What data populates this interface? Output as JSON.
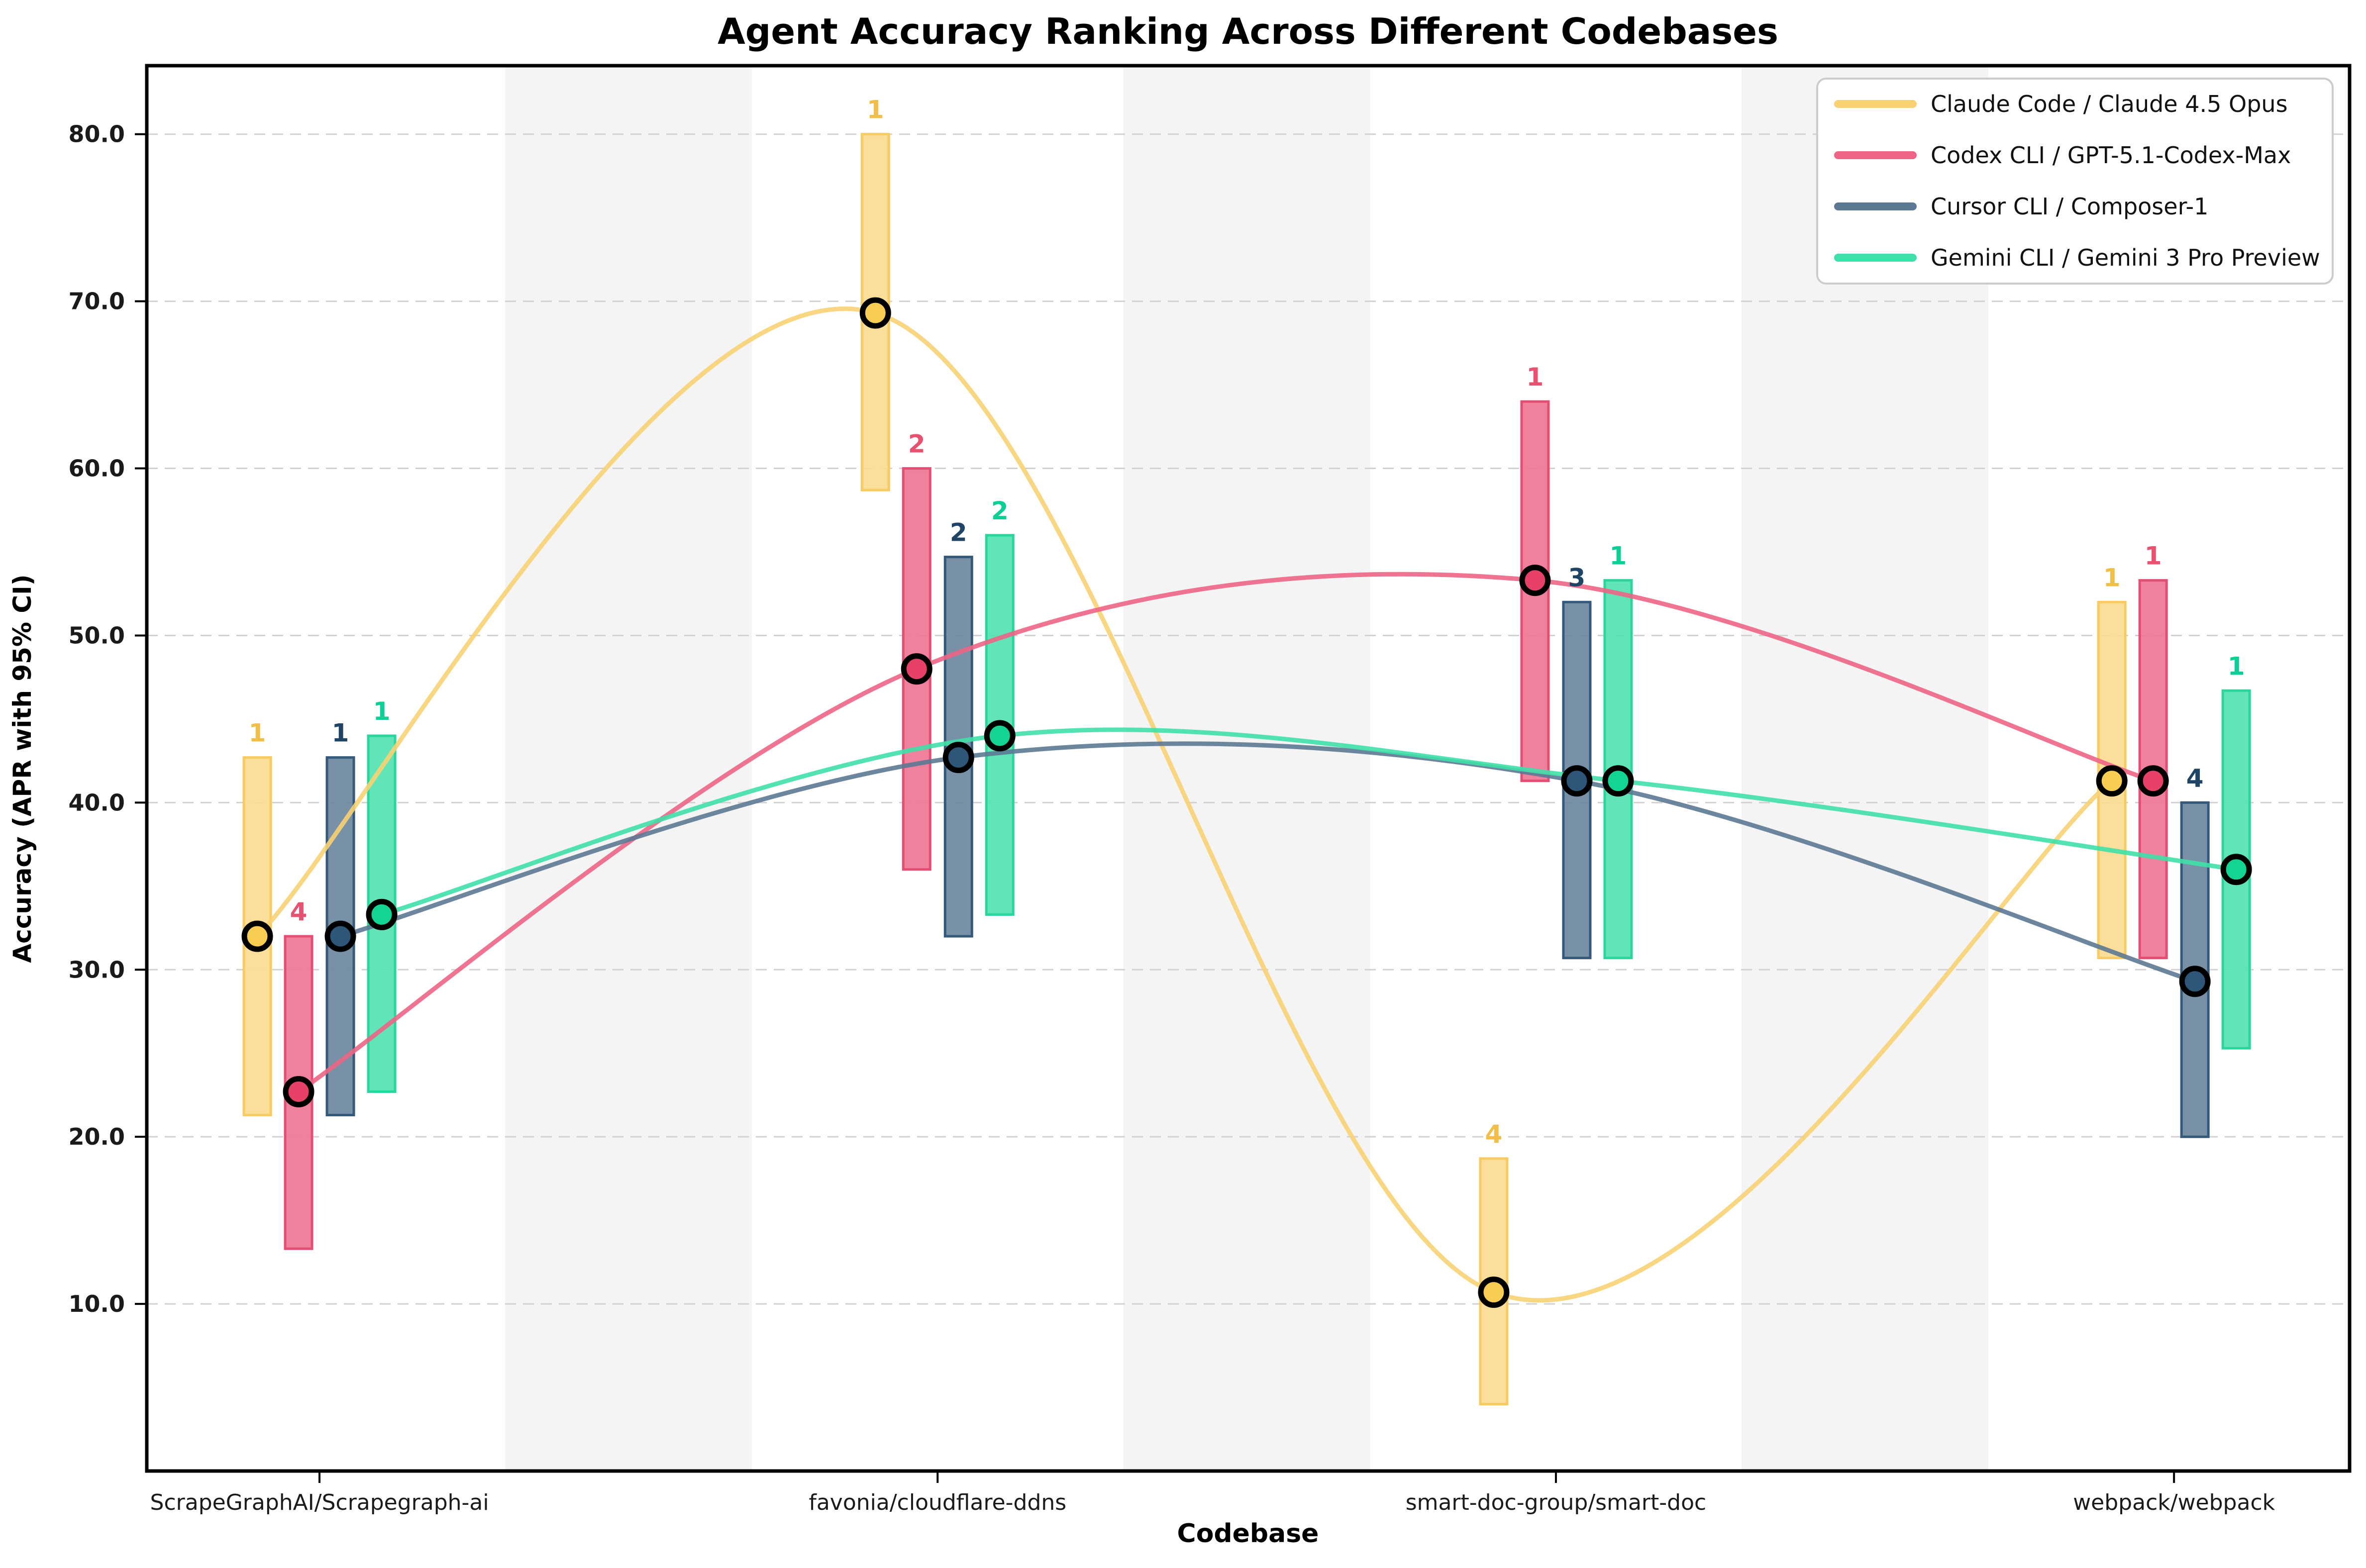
{
  "title": "Agent Accuracy Ranking Across Different Codebases",
  "chart_data": {
    "type": "line",
    "subtype": "bump-chart with 95% CI bars and rank labels",
    "title": "Agent Accuracy Ranking Across Different Codebases",
    "xlabel": "Codebase",
    "ylabel": "Accuracy (APR with 95% CI)",
    "ylim": [
      0,
      84.1
    ],
    "yticks": [
      10,
      20,
      30,
      40,
      50,
      60,
      70,
      80
    ],
    "ytick_labels": [
      "10.0",
      "20.0",
      "30.0",
      "40.0",
      "50.0",
      "60.0",
      "70.0",
      "80.0"
    ],
    "grid": "horizontal dashed",
    "legend_position": "upper right",
    "background": "alternating vertical light-gray bands between categories",
    "categories": [
      "ScrapeGraphAI/Scrapegraph-ai",
      "favonia/cloudflare-ddns",
      "smart-doc-group/smart-doc",
      "webpack/webpack"
    ],
    "series": [
      {
        "name": "Claude Code / Claude 4.5 Opus",
        "line_color": "#F8D173",
        "bar_fill": "#FBDB90",
        "bar_edge": "#F7CA62",
        "marker_fill": "#F9CC52",
        "rank_color": "#EFBF49",
        "means": [
          32.0,
          69.3,
          10.7,
          41.3
        ],
        "ci_low": [
          21.3,
          58.7,
          4.0,
          30.7
        ],
        "ci_high": [
          42.7,
          80.0,
          18.7,
          52.0
        ],
        "ranks": [
          1,
          1,
          4,
          1
        ]
      },
      {
        "name": "Codex CLI / GPT-5.1-Codex-Max",
        "line_color": "#ED6585",
        "bar_fill": "#EF7694",
        "bar_edge": "#E64D73",
        "marker_fill": "#E84168",
        "rank_color": "#E8516F",
        "means": [
          22.7,
          48.0,
          53.3,
          41.3
        ],
        "ci_low": [
          13.3,
          36.0,
          41.3,
          30.7
        ],
        "ci_high": [
          32.0,
          60.0,
          64.0,
          53.3
        ],
        "ranks": [
          4,
          2,
          1,
          1
        ]
      },
      {
        "name": "Cursor CLI / Composer-1",
        "line_color": "#5C7993",
        "bar_fill": "#6D88A0",
        "bar_edge": "#35597B",
        "marker_fill": "#2E5678",
        "rank_color": "#1E4566",
        "means": [
          32.0,
          42.7,
          41.3,
          29.3
        ],
        "ci_low": [
          21.3,
          32.0,
          30.7,
          20.0
        ],
        "ci_high": [
          42.7,
          54.7,
          52.0,
          40.0
        ],
        "ranks": [
          1,
          2,
          3,
          4
        ]
      },
      {
        "name": "Gemini CLI / Gemini 3 Pro Preview",
        "line_color": "#3FE0A8",
        "bar_fill": "#54E3B2",
        "bar_edge": "#2AD69C",
        "marker_fill": "#12D495",
        "rank_color": "#0CCF95",
        "means": [
          33.3,
          44.0,
          41.3,
          36.0
        ],
        "ci_low": [
          22.7,
          33.3,
          30.7,
          25.3
        ],
        "ci_high": [
          44.0,
          56.0,
          53.3,
          46.7
        ],
        "ranks": [
          1,
          2,
          1,
          1
        ]
      }
    ]
  },
  "colors": {
    "band": "#f4f4f4",
    "grid": "#d2d2d2",
    "spine": "#000000",
    "legend_border": "#cccccc",
    "legend_bg": "#ffffff",
    "text": "#000000",
    "tick_text": "#1a1a1a"
  }
}
